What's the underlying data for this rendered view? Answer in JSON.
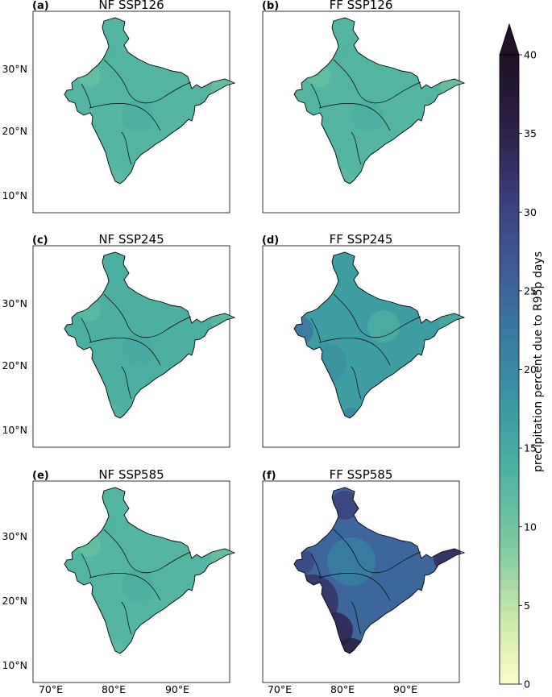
{
  "chart_data": [
    {
      "type": "heatmap",
      "label": "(a)",
      "title": "NF SSP126",
      "level": "low",
      "mean_percent": 13,
      "range_percent": [
        10,
        17
      ]
    },
    {
      "type": "heatmap",
      "label": "(b)",
      "title": "FF SSP126",
      "level": "low",
      "mean_percent": 13,
      "range_percent": [
        10,
        18
      ]
    },
    {
      "type": "heatmap",
      "label": "(c)",
      "title": "NF SSP245",
      "level": "low",
      "mean_percent": 14,
      "range_percent": [
        11,
        18
      ]
    },
    {
      "type": "heatmap",
      "label": "(d)",
      "title": "FF SSP245",
      "level": "mid",
      "mean_percent": 17,
      "range_percent": [
        13,
        25
      ]
    },
    {
      "type": "heatmap",
      "label": "(e)",
      "title": "NF SSP585",
      "level": "low",
      "mean_percent": 13,
      "range_percent": [
        10,
        17
      ]
    },
    {
      "type": "heatmap",
      "label": "(f)",
      "title": "FF SSP585",
      "level": "high",
      "mean_percent": 25,
      "range_percent": [
        18,
        40
      ]
    }
  ],
  "axes": {
    "lat_ticks": [
      "30°N",
      "20°N",
      "10°N"
    ],
    "lon_ticks": [
      "70°E",
      "80°E",
      "90°E"
    ]
  },
  "colorbar": {
    "label": "precipitation percent due to R95p days",
    "ticks": [
      "0",
      "5",
      "10",
      "15",
      "20",
      "25",
      "30",
      "35",
      "40"
    ],
    "vmin": 0,
    "vmax": 40,
    "extend": "max",
    "colormap": "yellow-green-blue-dark",
    "colors": [
      "#fdfdca",
      "#c8e7a8",
      "#7ec9a1",
      "#4fb3a2",
      "#3a98a3",
      "#3a7aa0",
      "#3e5b96",
      "#3a3d78",
      "#2b1e45",
      "#1d1226"
    ]
  }
}
